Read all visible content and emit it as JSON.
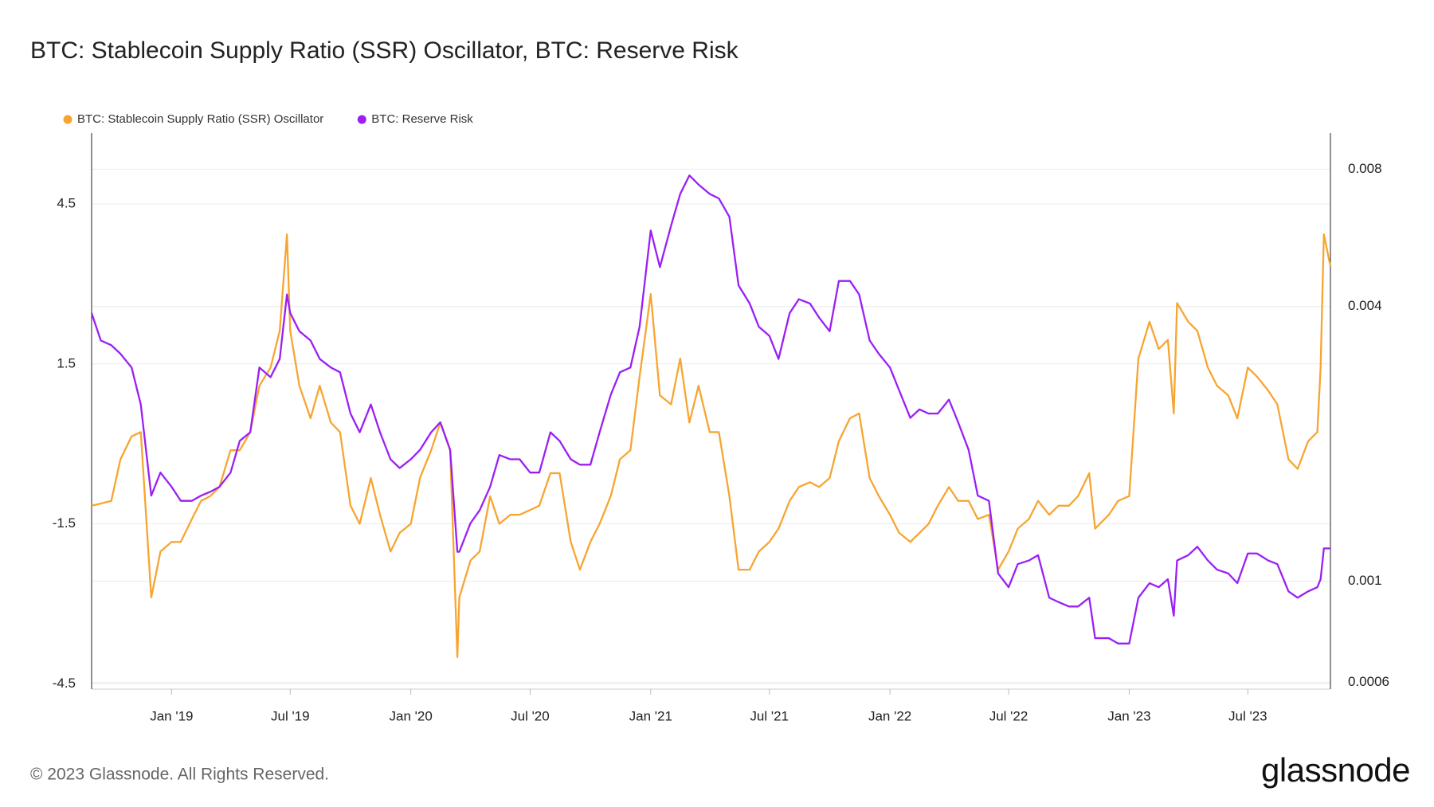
{
  "chart_data": {
    "type": "line",
    "title": "BTC: Stablecoin Supply Ratio (SSR) Oscillator, BTC: Reserve Risk",
    "x": [
      "2018-09-01",
      "2018-09-15",
      "2018-10-01",
      "2018-10-15",
      "2018-11-01",
      "2018-11-15",
      "2018-12-01",
      "2018-12-15",
      "2019-01-01",
      "2019-01-15",
      "2019-02-01",
      "2019-02-15",
      "2019-03-01",
      "2019-03-15",
      "2019-04-01",
      "2019-04-15",
      "2019-05-01",
      "2019-05-15",
      "2019-06-01",
      "2019-06-15",
      "2019-06-26",
      "2019-07-01",
      "2019-07-15",
      "2019-08-01",
      "2019-08-15",
      "2019-09-01",
      "2019-09-15",
      "2019-10-01",
      "2019-10-15",
      "2019-11-01",
      "2019-11-15",
      "2019-12-01",
      "2019-12-15",
      "2020-01-01",
      "2020-01-15",
      "2020-02-01",
      "2020-02-15",
      "2020-03-01",
      "2020-03-12",
      "2020-03-15",
      "2020-04-01",
      "2020-04-15",
      "2020-05-01",
      "2020-05-15",
      "2020-06-01",
      "2020-06-15",
      "2020-07-01",
      "2020-07-15",
      "2020-08-01",
      "2020-08-15",
      "2020-09-01",
      "2020-09-15",
      "2020-10-01",
      "2020-10-15",
      "2020-11-01",
      "2020-11-15",
      "2020-12-01",
      "2020-12-15",
      "2021-01-01",
      "2021-01-15",
      "2021-02-01",
      "2021-02-15",
      "2021-03-01",
      "2021-03-15",
      "2021-04-01",
      "2021-04-15",
      "2021-05-01",
      "2021-05-15",
      "2021-06-01",
      "2021-06-15",
      "2021-07-01",
      "2021-07-15",
      "2021-08-01",
      "2021-08-15",
      "2021-09-01",
      "2021-09-15",
      "2021-10-01",
      "2021-10-15",
      "2021-11-01",
      "2021-11-15",
      "2021-12-01",
      "2021-12-15",
      "2022-01-01",
      "2022-01-15",
      "2022-02-01",
      "2022-02-15",
      "2022-03-01",
      "2022-03-15",
      "2022-04-01",
      "2022-04-15",
      "2022-05-01",
      "2022-05-15",
      "2022-06-01",
      "2022-06-15",
      "2022-07-01",
      "2022-07-15",
      "2022-08-01",
      "2022-08-15",
      "2022-09-01",
      "2022-09-15",
      "2022-10-01",
      "2022-10-15",
      "2022-11-01",
      "2022-11-10",
      "2022-12-01",
      "2022-12-15",
      "2023-01-01",
      "2023-01-15",
      "2023-02-01",
      "2023-02-15",
      "2023-03-01",
      "2023-03-10",
      "2023-03-15",
      "2023-04-01",
      "2023-04-15",
      "2023-05-01",
      "2023-05-15",
      "2023-06-01",
      "2023-06-15",
      "2023-07-01",
      "2023-07-15",
      "2023-08-01",
      "2023-08-15",
      "2023-09-01",
      "2023-09-15",
      "2023-10-01",
      "2023-10-15",
      "2023-10-20",
      "2023-10-25",
      "2023-11-04"
    ],
    "series": [
      {
        "name": "BTC: Stablecoin Supply Ratio (SSR) Oscillator",
        "color": "#f7a531",
        "axis": "y",
        "values": [
          -1.16,
          -1.12,
          -1.07,
          -0.29,
          0.14,
          0.22,
          -2.88,
          -2.02,
          -1.84,
          -1.84,
          -1.41,
          -1.07,
          -0.98,
          -0.81,
          -0.12,
          -0.12,
          0.22,
          1.09,
          1.43,
          2.12,
          3.93,
          2.12,
          1.09,
          0.48,
          1.09,
          0.4,
          0.22,
          -1.16,
          -1.5,
          -0.64,
          -1.33,
          -2.02,
          -1.67,
          -1.5,
          -0.64,
          -0.12,
          0.4,
          -0.12,
          -4.0,
          -2.88,
          -2.19,
          -2.02,
          -0.98,
          -1.5,
          -1.33,
          -1.33,
          -1.24,
          -1.16,
          -0.55,
          -0.55,
          -1.84,
          -2.36,
          -1.84,
          -1.5,
          -0.98,
          -0.29,
          -0.12,
          1.26,
          2.81,
          0.91,
          0.74,
          1.6,
          0.4,
          1.09,
          0.22,
          0.22,
          -0.98,
          -2.36,
          -2.36,
          -2.02,
          -1.84,
          -1.59,
          -1.07,
          -0.81,
          -0.72,
          -0.81,
          -0.64,
          0.05,
          0.48,
          0.57,
          -0.64,
          -0.98,
          -1.33,
          -1.67,
          -1.84,
          -1.67,
          -1.5,
          -1.16,
          -0.81,
          -1.07,
          -1.07,
          -1.41,
          -1.33,
          -2.36,
          -2.02,
          -1.59,
          -1.41,
          -1.07,
          -1.33,
          -1.16,
          -1.16,
          -0.98,
          -0.55,
          -1.59,
          -1.33,
          -1.07,
          -0.98,
          1.6,
          2.29,
          1.78,
          1.95,
          0.57,
          2.64,
          2.29,
          2.12,
          1.43,
          1.09,
          0.91,
          0.48,
          1.43,
          1.26,
          1.0,
          0.74,
          -0.29,
          -0.47,
          0.05,
          0.22,
          1.43,
          3.93,
          3.33
        ]
      },
      {
        "name": "BTC: Reserve Risk",
        "color": "#9b1ff5",
        "axis": "y2",
        "values": [
          0.00387,
          0.00337,
          0.00329,
          0.00315,
          0.00294,
          0.00244,
          0.00154,
          0.00173,
          0.00161,
          0.0015,
          0.0015,
          0.00154,
          0.00157,
          0.00161,
          0.00173,
          0.00203,
          0.00212,
          0.00294,
          0.0028,
          0.00307,
          0.00425,
          0.00387,
          0.00353,
          0.00337,
          0.00307,
          0.00294,
          0.00287,
          0.00233,
          0.00212,
          0.00244,
          0.00212,
          0.00185,
          0.00177,
          0.00185,
          0.00194,
          0.00212,
          0.00223,
          0.00194,
          0.00116,
          0.00116,
          0.00134,
          0.00143,
          0.00161,
          0.00189,
          0.00185,
          0.00185,
          0.00173,
          0.00173,
          0.00212,
          0.00203,
          0.00185,
          0.0018,
          0.0018,
          0.00212,
          0.00256,
          0.00287,
          0.00294,
          0.00361,
          0.00587,
          0.00488,
          0.00601,
          0.00706,
          0.00775,
          0.0074,
          0.00706,
          0.0069,
          0.00629,
          0.00445,
          0.00406,
          0.00361,
          0.00345,
          0.00307,
          0.00387,
          0.00415,
          0.00406,
          0.00378,
          0.00353,
          0.00455,
          0.00455,
          0.00425,
          0.00337,
          0.00315,
          0.00294,
          0.00262,
          0.00228,
          0.00238,
          0.00233,
          0.00233,
          0.0025,
          0.00223,
          0.00194,
          0.00154,
          0.0015,
          0.00104,
          0.00097,
          0.00109,
          0.00111,
          0.00114,
          0.00092,
          0.0009,
          0.00088,
          0.00088,
          0.00092,
          0.00075,
          0.00075,
          0.00073,
          0.00073,
          0.00092,
          0.00099,
          0.00097,
          0.00101,
          0.00084,
          0.00111,
          0.00114,
          0.00119,
          0.00111,
          0.00106,
          0.00104,
          0.00099,
          0.00115,
          0.00115,
          0.00111,
          0.00109,
          0.00095,
          0.00092,
          0.00095,
          0.00097,
          0.00101,
          0.00118,
          0.00118
        ]
      }
    ],
    "xlim": [
      "2018-09-01",
      "2023-11-04"
    ],
    "xticks": [
      {
        "value": "2019-01-01",
        "label": "Jan '19"
      },
      {
        "value": "2019-07-01",
        "label": "Jul '19"
      },
      {
        "value": "2020-01-01",
        "label": "Jan '20"
      },
      {
        "value": "2020-07-01",
        "label": "Jul '20"
      },
      {
        "value": "2021-01-01",
        "label": "Jan '21"
      },
      {
        "value": "2021-07-01",
        "label": "Jul '21"
      },
      {
        "value": "2022-01-01",
        "label": "Jan '22"
      },
      {
        "value": "2022-07-01",
        "label": "Jul '22"
      },
      {
        "value": "2023-01-01",
        "label": "Jan '23"
      },
      {
        "value": "2023-07-01",
        "label": "Jul '23"
      }
    ],
    "ylim": [
      -4.6,
      5.83
    ],
    "yticks": [
      -4.5,
      -1.5,
      1.5,
      4.5
    ],
    "y2lim": [
      0.00058,
      0.0096
    ],
    "y2ticks": [
      0.0006,
      0.001,
      0.004,
      0.008
    ],
    "y2_log": true,
    "grid": true,
    "legend": "top-left"
  },
  "footer": "© 2023 Glassnode. All Rights Reserved.",
  "logo": "glassnode"
}
